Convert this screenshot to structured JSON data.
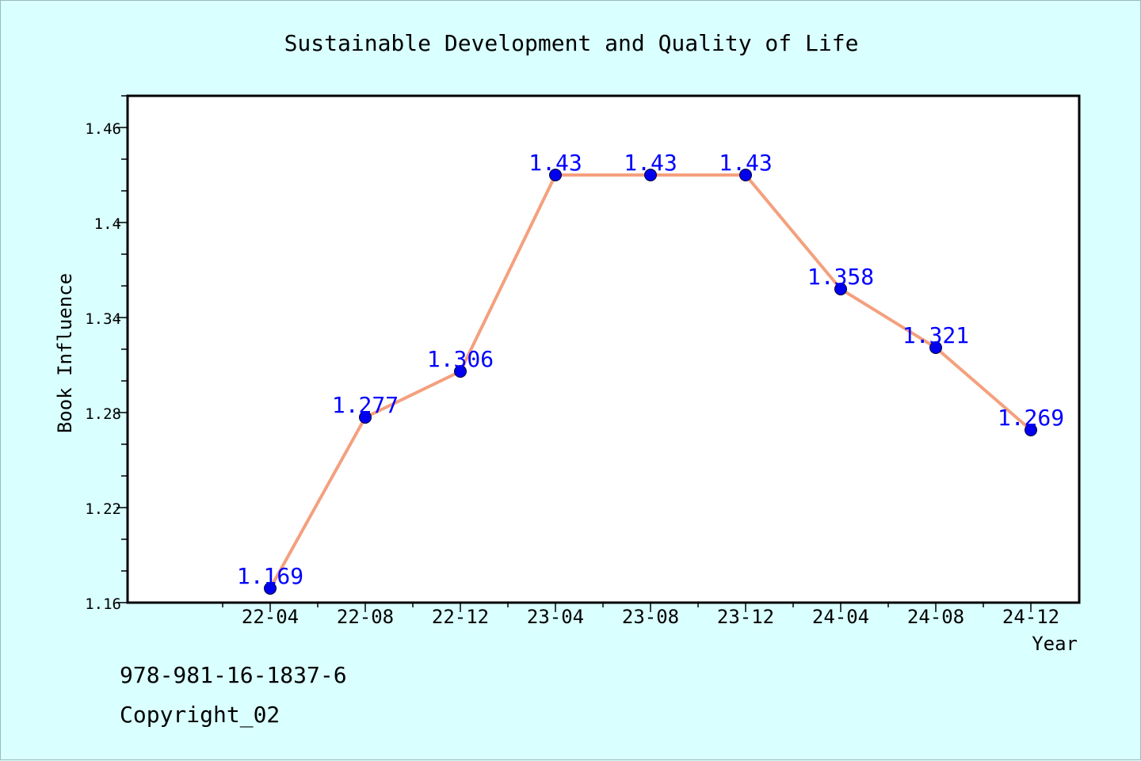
{
  "chart_data": {
    "type": "line",
    "title": "Sustainable Development and Quality of Life",
    "xlabel": "Year",
    "ylabel": "Book Influence",
    "categories": [
      "22-04",
      "22-08",
      "22-12",
      "23-04",
      "23-08",
      "23-12",
      "24-04",
      "24-08",
      "24-12"
    ],
    "series": [
      {
        "values": [
          1.169,
          1.277,
          1.306,
          1.43,
          1.43,
          1.43,
          1.358,
          1.321,
          1.269
        ],
        "labels": [
          "1.169",
          "1.277",
          "1.306",
          "1.43",
          "1.43",
          "1.43",
          "1.358",
          "1.321",
          "1.269"
        ]
      }
    ],
    "ylim": [
      1.16,
      1.48
    ],
    "yticks": [
      1.16,
      1.22,
      1.28,
      1.34,
      1.4,
      1.46
    ],
    "ytick_labels": [
      "1.16",
      "1.22",
      "1.28",
      "1.34",
      "1.4",
      "1.46"
    ],
    "grid": false,
    "colors": {
      "line": "#f4a07e",
      "marker": "#0000ee",
      "data_label": "#0000ff",
      "plot_bg": "#ffffff",
      "page_bg": "#d9ffff"
    }
  },
  "footer": {
    "isbn": "978-981-16-1837-6",
    "copyright": "Copyright_02"
  }
}
